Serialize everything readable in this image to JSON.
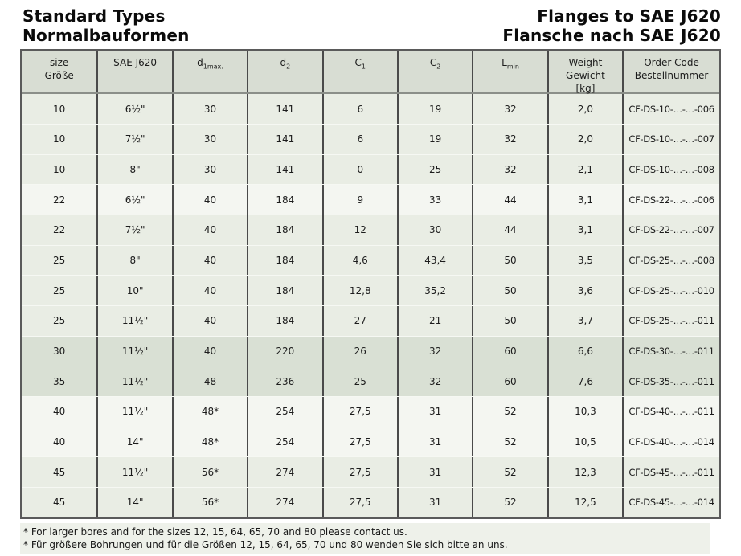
{
  "titles": {
    "left": [
      "Standard Types",
      "Normalbauformen"
    ],
    "right": [
      "Flanges to SAE J620",
      "Flansche nach SAE J620"
    ]
  },
  "table": {
    "columns": [
      {
        "id": "size",
        "lines": [
          "size",
          "Größe"
        ]
      },
      {
        "id": "sae-j620",
        "lines": [
          "SAE J620"
        ]
      },
      {
        "id": "d1max",
        "base": "d",
        "sub": "1max."
      },
      {
        "id": "d2",
        "base": "d",
        "sub": "2"
      },
      {
        "id": "c1",
        "base": "C",
        "sub": "1"
      },
      {
        "id": "c2",
        "base": "C",
        "sub": "2"
      },
      {
        "id": "lmin",
        "base": "L",
        "sub": "min"
      },
      {
        "id": "weight",
        "lines": [
          "Weight",
          "Gewicht",
          "[kg]"
        ]
      },
      {
        "id": "order-code",
        "lines": [
          "Order Code",
          "Bestellnummer"
        ]
      }
    ],
    "rows": [
      {
        "shade": "a",
        "cells": [
          "10",
          "6½\"",
          "30",
          "141",
          "6",
          "19",
          "32",
          "2,0",
          "CF-DS-10-…-…-006"
        ]
      },
      {
        "shade": "a",
        "cells": [
          "10",
          "7½\"",
          "30",
          "141",
          "6",
          "19",
          "32",
          "2,0",
          "CF-DS-10-…-…-007"
        ]
      },
      {
        "shade": "a",
        "cells": [
          "10",
          "8\"",
          "30",
          "141",
          "0",
          "25",
          "32",
          "2,1",
          "CF-DS-10-…-…-008"
        ]
      },
      {
        "shade": "b",
        "cells": [
          "22",
          "6½\"",
          "40",
          "184",
          "9",
          "33",
          "44",
          "3,1",
          "CF-DS-22-…-…-006"
        ]
      },
      {
        "shade": "a",
        "cells": [
          "22",
          "7½\"",
          "40",
          "184",
          "12",
          "30",
          "44",
          "3,1",
          "CF-DS-22-…-…-007"
        ]
      },
      {
        "shade": "a",
        "cells": [
          "25",
          "8\"",
          "40",
          "184",
          "4,6",
          "43,4",
          "50",
          "3,5",
          "CF-DS-25-…-…-008"
        ]
      },
      {
        "shade": "a",
        "cells": [
          "25",
          "10\"",
          "40",
          "184",
          "12,8",
          "35,2",
          "50",
          "3,6",
          "CF-DS-25-…-…-010"
        ]
      },
      {
        "shade": "a",
        "cells": [
          "25",
          "11½\"",
          "40",
          "184",
          "27",
          "21",
          "50",
          "3,7",
          "CF-DS-25-…-…-011"
        ]
      },
      {
        "shade": "c",
        "cells": [
          "30",
          "11½\"",
          "40",
          "220",
          "26",
          "32",
          "60",
          "6,6",
          "CF-DS-30-…-…-011"
        ]
      },
      {
        "shade": "c",
        "cells": [
          "35",
          "11½\"",
          "48",
          "236",
          "25",
          "32",
          "60",
          "7,6",
          "CF-DS-35-…-…-011"
        ]
      },
      {
        "shade": "b",
        "cells": [
          "40",
          "11½\"",
          "48*",
          "254",
          "27,5",
          "31",
          "52",
          "10,3",
          "CF-DS-40-…-…-011"
        ]
      },
      {
        "shade": "b",
        "cells": [
          "40",
          "14\"",
          "48*",
          "254",
          "27,5",
          "31",
          "52",
          "10,5",
          "CF-DS-40-…-…-014"
        ]
      },
      {
        "shade": "a",
        "cells": [
          "45",
          "11½\"",
          "56*",
          "274",
          "27,5",
          "31",
          "52",
          "12,3",
          "CF-DS-45-…-…-011"
        ]
      },
      {
        "shade": "a",
        "cells": [
          "45",
          "14\"",
          "56*",
          "274",
          "27,5",
          "31",
          "52",
          "12,5",
          "CF-DS-45-…-…-014"
        ]
      }
    ]
  },
  "footnotes": [
    "* For larger bores and for the sizes 12, 15, 64, 65, 70 and 80 please contact us.",
    "* Für größere Bohrungen und für die Größen 12, 15, 64, 65, 70 und 80 wenden Sie sich bitte an uns."
  ],
  "colors": {
    "header_bg": "#d8ddd3",
    "band_normal": "#e9ede4",
    "band_light": "#f4f6f1",
    "band_dark": "#d9e0d4",
    "border_dark": "#4a4a4a",
    "footnote_bg": "#eef1ea"
  }
}
